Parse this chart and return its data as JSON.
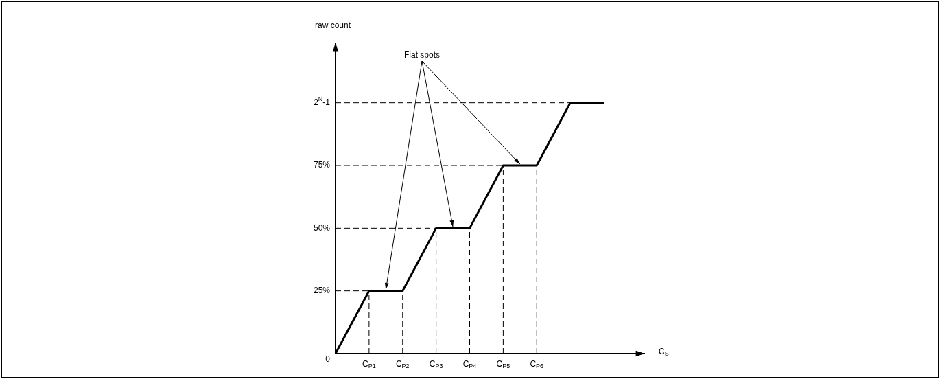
{
  "chart_data": {
    "type": "line",
    "ylabel": "raw count",
    "xlabel": "C$_{S}$",
    "annotations": [
      "Flat spots"
    ],
    "categories": [
      null,
      "C$_{P1}$",
      "C$_{P2}$",
      "C$_{P3}$",
      "C$_{P4}$",
      "C$_{P5}$",
      "C$_{P6}$",
      null,
      null
    ],
    "values": [
      0,
      25,
      25,
      50,
      50,
      75,
      75,
      100,
      100
    ],
    "color": "#000000",
    "ylim": [
      0,
      124
    ],
    "yticks": [
      0,
      {
        "value": 25,
        "label": "25%"
      },
      {
        "value": 50,
        "label": "50%"
      },
      {
        "value": 75,
        "label": "75%"
      },
      {
        "value": 100,
        "label": "2$^{N}$-1"
      }
    ],
    "ref_lines": [
      {
        "axis": "y",
        "value": 25,
        "line_style": "dashed",
        "color": "#000000"
      },
      {
        "axis": "y",
        "value": 50,
        "line_style": "dashed",
        "color": "#000000"
      },
      {
        "axis": "y",
        "value": 75,
        "line_style": "dashed",
        "color": "#000000"
      },
      {
        "axis": "y",
        "value": 100,
        "line_style": "dashed",
        "color": "#000000"
      },
      {
        "axis": "x",
        "value": "C$_{P1}$",
        "line_style": "dashed",
        "color": "#000000"
      },
      {
        "axis": "x",
        "value": "C$_{P2}$",
        "line_style": "dashed",
        "color": "#000000"
      },
      {
        "axis": "x",
        "value": "C$_{P3}$",
        "line_style": "dashed",
        "color": "#000000"
      },
      {
        "axis": "x",
        "value": "C$_{P4}$",
        "line_style": "dashed",
        "color": "#000000"
      },
      {
        "axis": "x",
        "value": "C$_{P5}$",
        "line_style": "dashed",
        "color": "#000000"
      },
      {
        "axis": "x",
        "value": "C$_{P6}$",
        "line_style": "dashed",
        "color": "#000000"
      }
    ],
    "legend": false,
    "marker": "none",
    "line_style": "solid"
  }
}
